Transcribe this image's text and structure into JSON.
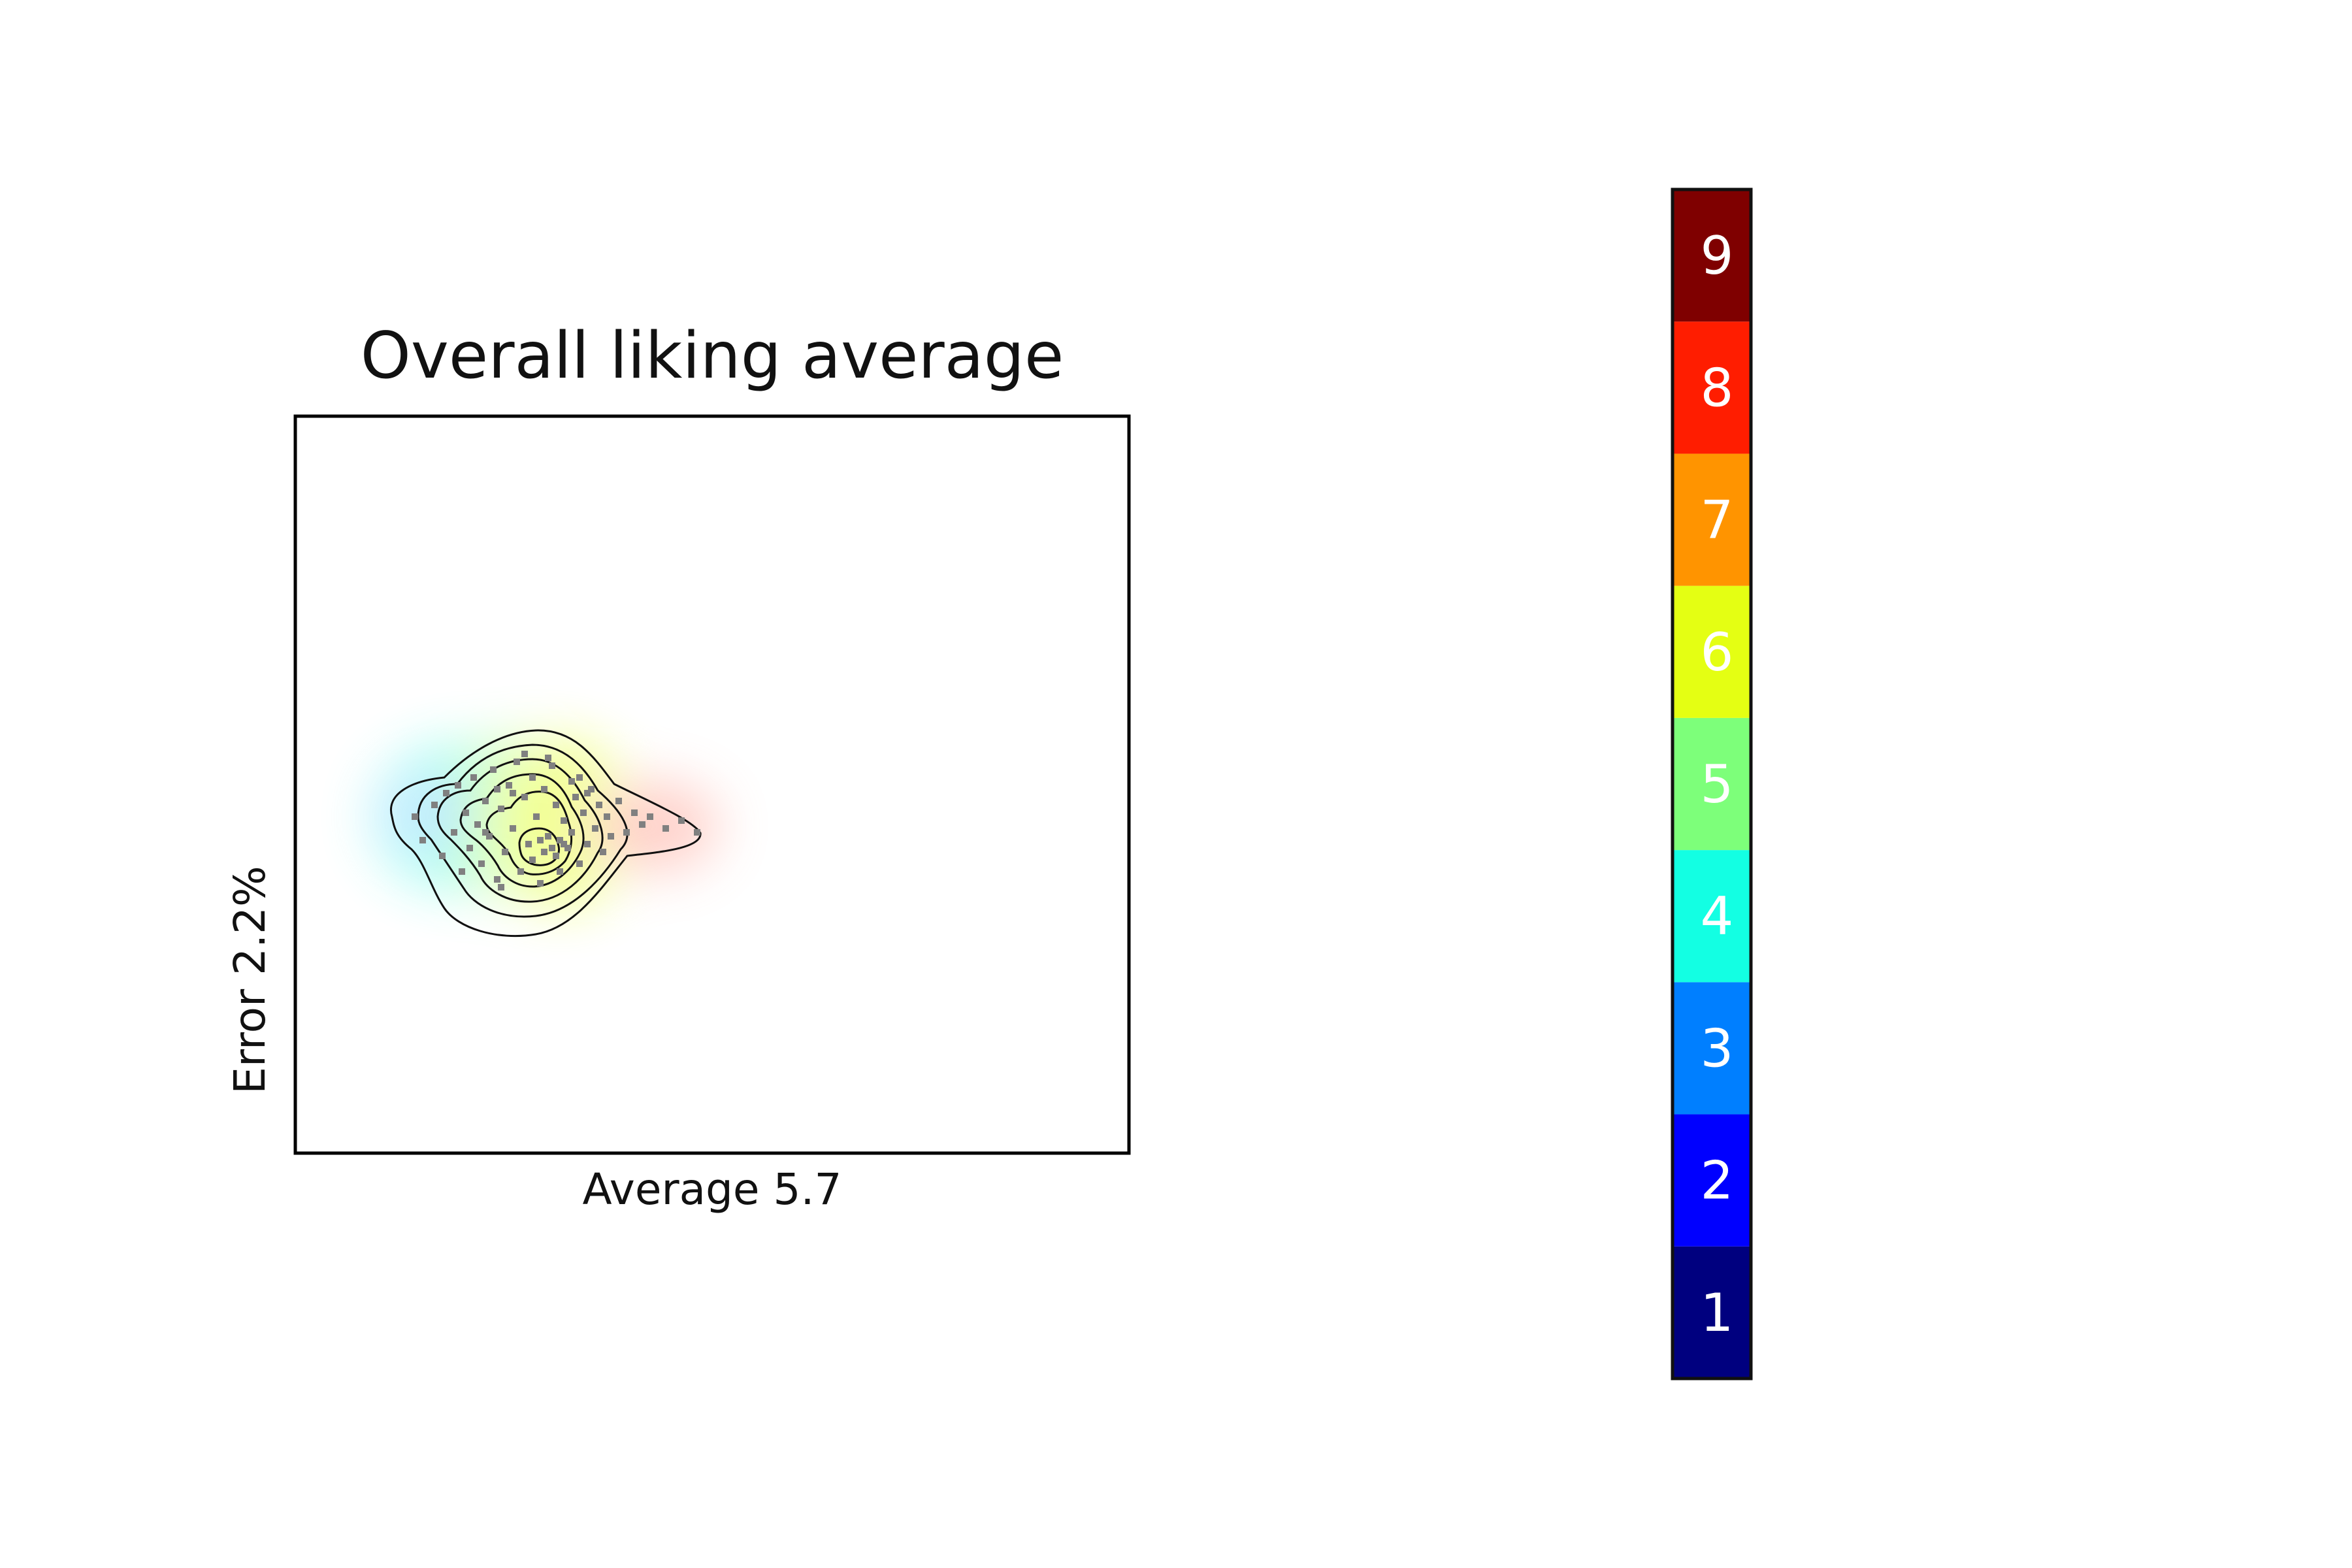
{
  "chart_data": [
    {
      "type": "contour-scatter",
      "title": "Overall liking average",
      "xlabel": "Average 5.7",
      "ylabel": "Error 2.2%",
      "grid": false,
      "points": [
        [
          -0.3,
          0.02
        ],
        [
          -0.28,
          -0.04
        ],
        [
          -0.25,
          0.05
        ],
        [
          -0.23,
          -0.08
        ],
        [
          -0.22,
          0.08
        ],
        [
          -0.2,
          -0.02
        ],
        [
          -0.19,
          0.1
        ],
        [
          -0.18,
          -0.12
        ],
        [
          -0.17,
          0.03
        ],
        [
          -0.16,
          -0.06
        ],
        [
          -0.15,
          0.12
        ],
        [
          -0.14,
          0.0
        ],
        [
          -0.13,
          -0.1
        ],
        [
          -0.12,
          0.06
        ],
        [
          -0.11,
          -0.03
        ],
        [
          -0.1,
          0.14
        ],
        [
          -0.09,
          -0.14
        ],
        [
          -0.08,
          0.04
        ],
        [
          -0.07,
          -0.07
        ],
        [
          -0.06,
          0.1
        ],
        [
          -0.05,
          -0.01
        ],
        [
          -0.04,
          0.16
        ],
        [
          -0.03,
          -0.12
        ],
        [
          -0.02,
          0.07
        ],
        [
          -0.01,
          -0.05
        ],
        [
          0.0,
          0.12
        ],
        [
          0.0,
          -0.09
        ],
        [
          0.01,
          0.02
        ],
        [
          0.02,
          -0.15
        ],
        [
          0.03,
          0.09
        ],
        [
          0.04,
          -0.03
        ],
        [
          0.05,
          0.15
        ],
        [
          0.06,
          -0.08
        ],
        [
          0.06,
          0.05
        ],
        [
          0.07,
          -0.12
        ],
        [
          0.08,
          0.01
        ],
        [
          0.09,
          -0.06
        ],
        [
          0.1,
          0.11
        ],
        [
          0.1,
          -0.02
        ],
        [
          0.11,
          0.07
        ],
        [
          0.12,
          -0.1
        ],
        [
          0.13,
          0.03
        ],
        [
          0.14,
          -0.05
        ],
        [
          0.15,
          0.09
        ],
        [
          0.16,
          -0.01
        ],
        [
          0.17,
          0.05
        ],
        [
          0.18,
          -0.07
        ],
        [
          0.19,
          0.02
        ],
        [
          0.2,
          -0.03
        ],
        [
          0.22,
          0.06
        ],
        [
          0.24,
          -0.02
        ],
        [
          0.26,
          0.03
        ],
        [
          0.28,
          0.0
        ],
        [
          0.3,
          0.02
        ],
        [
          0.34,
          -0.01
        ],
        [
          0.38,
          0.01
        ],
        [
          0.42,
          -0.02
        ],
        [
          -0.02,
          0.18
        ],
        [
          0.04,
          0.17
        ],
        [
          -0.08,
          -0.16
        ],
        [
          0.02,
          -0.04
        ],
        [
          0.05,
          -0.06
        ],
        [
          0.03,
          -0.07
        ],
        [
          0.07,
          -0.04
        ],
        [
          0.08,
          -0.05
        ],
        [
          -0.05,
          0.08
        ],
        [
          -0.09,
          0.09
        ],
        [
          -0.12,
          -0.02
        ],
        [
          0.12,
          0.12
        ],
        [
          0.14,
          0.08
        ]
      ]
    },
    {
      "type": "colorbar",
      "levels": [
        "1",
        "2",
        "3",
        "4",
        "5",
        "6",
        "7",
        "8",
        "9"
      ],
      "colors": [
        "#00007f",
        "#0000ff",
        "#007fff",
        "#13ffe3",
        "#7dff7a",
        "#e4ff13",
        "#ff9400",
        "#ff1d00",
        "#7f0000"
      ]
    }
  ]
}
